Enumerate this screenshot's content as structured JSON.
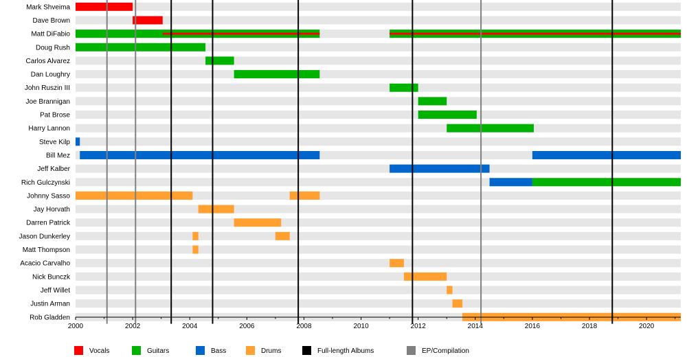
{
  "chart_data": {
    "type": "timeline",
    "title": "",
    "xlabel": "",
    "ylabel": "",
    "xlim": [
      2000,
      2021.2
    ],
    "x_ticks": [
      2000,
      2002,
      2004,
      2006,
      2008,
      2010,
      2012,
      2014,
      2016,
      2018,
      2020
    ],
    "legend_position": "bottom",
    "roles": [
      {
        "key": "vocals",
        "label": "Vocals",
        "color": "#ff0000"
      },
      {
        "key": "guitars",
        "label": "Guitars",
        "color": "#00b300"
      },
      {
        "key": "bass",
        "label": "Bass",
        "color": "#0066cc"
      },
      {
        "key": "drums",
        "label": "Drums",
        "color": "#ffa030"
      },
      {
        "key": "album",
        "label": "Full-length Albums",
        "color": "#000000"
      },
      {
        "key": "ep",
        "label": "EP/Compilation",
        "color": "#808080"
      }
    ],
    "albums": [
      2003.35,
      2004.8,
      2007.8,
      2011.8,
      2018.8
    ],
    "eps": [
      2001.1,
      2002.1,
      2014.2
    ],
    "members": [
      {
        "name": "Mark Shveima",
        "spans": [
          {
            "role": "vocals",
            "start": 2000.0,
            "end": 2002.0
          }
        ]
      },
      {
        "name": "Dave Brown",
        "spans": [
          {
            "role": "vocals",
            "start": 2002.0,
            "end": 2003.05
          }
        ]
      },
      {
        "name": "Matt DiFabio",
        "spans": [
          {
            "role": "guitars",
            "start": 2000.0,
            "end": 2008.55
          },
          {
            "role": "vocals",
            "start": 2003.05,
            "end": 2008.55,
            "inner": true
          },
          {
            "role": "guitars",
            "start": 2011.0,
            "end": 2021.2
          },
          {
            "role": "vocals",
            "start": 2011.0,
            "end": 2021.2,
            "inner": true
          }
        ]
      },
      {
        "name": "Doug Rush",
        "spans": [
          {
            "role": "guitars",
            "start": 2000.0,
            "end": 2004.55
          }
        ]
      },
      {
        "name": "Carlos Alvarez",
        "spans": [
          {
            "role": "guitars",
            "start": 2004.55,
            "end": 2005.55
          }
        ]
      },
      {
        "name": "Dan Loughry",
        "spans": [
          {
            "role": "guitars",
            "start": 2005.55,
            "end": 2008.55
          }
        ]
      },
      {
        "name": "John Ruszin III",
        "spans": [
          {
            "role": "guitars",
            "start": 2011.0,
            "end": 2012.0
          }
        ]
      },
      {
        "name": "Joe Brannigan",
        "spans": [
          {
            "role": "guitars",
            "start": 2012.0,
            "end": 2013.0
          }
        ]
      },
      {
        "name": "Pat Brose",
        "spans": [
          {
            "role": "guitars",
            "start": 2012.0,
            "end": 2014.05
          }
        ]
      },
      {
        "name": "Harry Lannon",
        "spans": [
          {
            "role": "guitars",
            "start": 2013.0,
            "end": 2016.05
          }
        ]
      },
      {
        "name": "Steve Kilp",
        "spans": [
          {
            "role": "bass",
            "start": 2000.0,
            "end": 2000.15
          }
        ]
      },
      {
        "name": "Bill Mez",
        "spans": [
          {
            "role": "bass",
            "start": 2000.15,
            "end": 2008.55
          },
          {
            "role": "bass",
            "start": 2016.0,
            "end": 2021.2
          }
        ]
      },
      {
        "name": "Jeff Kalber",
        "spans": [
          {
            "role": "bass",
            "start": 2011.0,
            "end": 2014.5
          }
        ]
      },
      {
        "name": "Rich Gulczynski",
        "spans": [
          {
            "role": "bass",
            "start": 2014.5,
            "end": 2016.0
          },
          {
            "role": "guitars",
            "start": 2016.0,
            "end": 2021.2
          }
        ]
      },
      {
        "name": "Johnny Sasso",
        "spans": [
          {
            "role": "drums",
            "start": 2000.0,
            "end": 2004.1
          },
          {
            "role": "drums",
            "start": 2007.5,
            "end": 2008.55
          }
        ]
      },
      {
        "name": "Jay Horvath",
        "spans": [
          {
            "role": "drums",
            "start": 2004.3,
            "end": 2005.55
          }
        ]
      },
      {
        "name": "Darren Patrick",
        "spans": [
          {
            "role": "drums",
            "start": 2005.55,
            "end": 2007.2
          }
        ]
      },
      {
        "name": "Jason Dunkerley",
        "spans": [
          {
            "role": "drums",
            "start": 2004.1,
            "end": 2004.3
          },
          {
            "role": "drums",
            "start": 2007.0,
            "end": 2007.5
          }
        ]
      },
      {
        "name": "Matt Thompson",
        "spans": [
          {
            "role": "drums",
            "start": 2004.1,
            "end": 2004.3
          }
        ]
      },
      {
        "name": "Acacio Carvalho",
        "spans": [
          {
            "role": "drums",
            "start": 2011.0,
            "end": 2011.5
          }
        ]
      },
      {
        "name": "Nick Bunczk",
        "spans": [
          {
            "role": "drums",
            "start": 2011.5,
            "end": 2013.0
          }
        ]
      },
      {
        "name": "Jeff Willet",
        "spans": [
          {
            "role": "drums",
            "start": 2013.0,
            "end": 2013.2
          }
        ]
      },
      {
        "name": "Justin Arman",
        "spans": [
          {
            "role": "drums",
            "start": 2013.2,
            "end": 2013.55
          }
        ]
      },
      {
        "name": "Rob Gladden",
        "spans": [
          {
            "role": "drums",
            "start": 2013.55,
            "end": 2021.2
          }
        ]
      }
    ]
  }
}
